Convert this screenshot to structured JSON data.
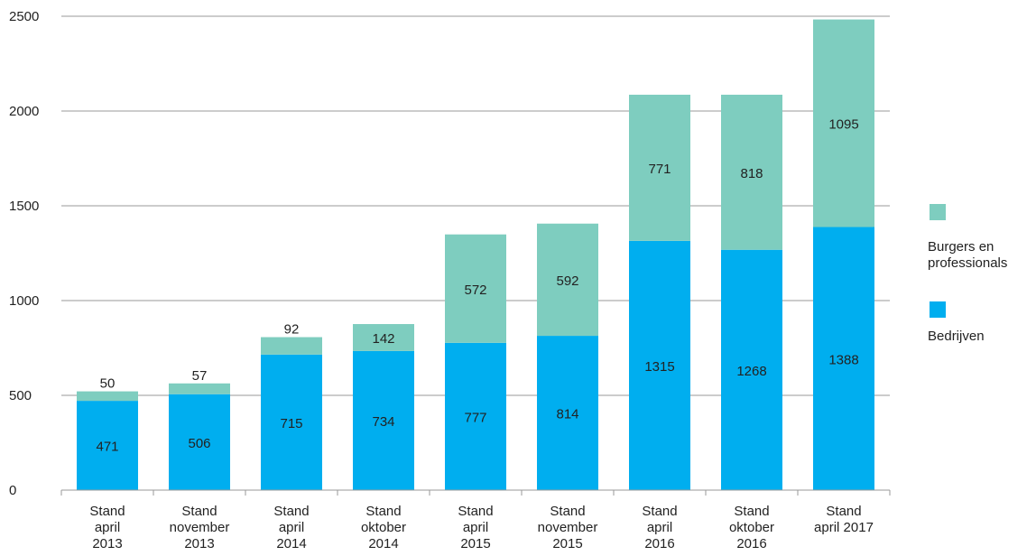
{
  "chart_data": {
    "type": "bar",
    "stacked": true,
    "categories": [
      [
        "Stand",
        "april",
        "2013"
      ],
      [
        "Stand",
        "november",
        "2013"
      ],
      [
        "Stand",
        "april",
        "2014"
      ],
      [
        "Stand",
        "oktober",
        "2014"
      ],
      [
        "Stand",
        "april",
        "2015"
      ],
      [
        "Stand",
        "november",
        "2015"
      ],
      [
        "Stand",
        "april",
        "2016"
      ],
      [
        "Stand",
        "oktober",
        "2016"
      ],
      [
        "Stand",
        "april 2017"
      ]
    ],
    "series": [
      {
        "name": "Bedrijven",
        "color": "#00aeef",
        "values": [
          471,
          506,
          715,
          734,
          777,
          814,
          1315,
          1268,
          1388
        ]
      },
      {
        "name": "Burgers en professionals",
        "color": "#7ecdbf",
        "values": [
          50,
          57,
          92,
          142,
          572,
          592,
          771,
          818,
          1095
        ]
      }
    ],
    "yticks": [
      "0",
      "500",
      "1000",
      "1500",
      "2000",
      "2500"
    ],
    "ylim": [
      0,
      2500
    ],
    "grid": true,
    "legend_position": "right",
    "legend": [
      {
        "series": 1,
        "label_lines": [
          "Burgers en",
          "professionals"
        ]
      },
      {
        "series": 0,
        "label_lines": [
          "Bedrijven"
        ]
      }
    ],
    "xlabel": "",
    "ylabel": "",
    "title": ""
  }
}
